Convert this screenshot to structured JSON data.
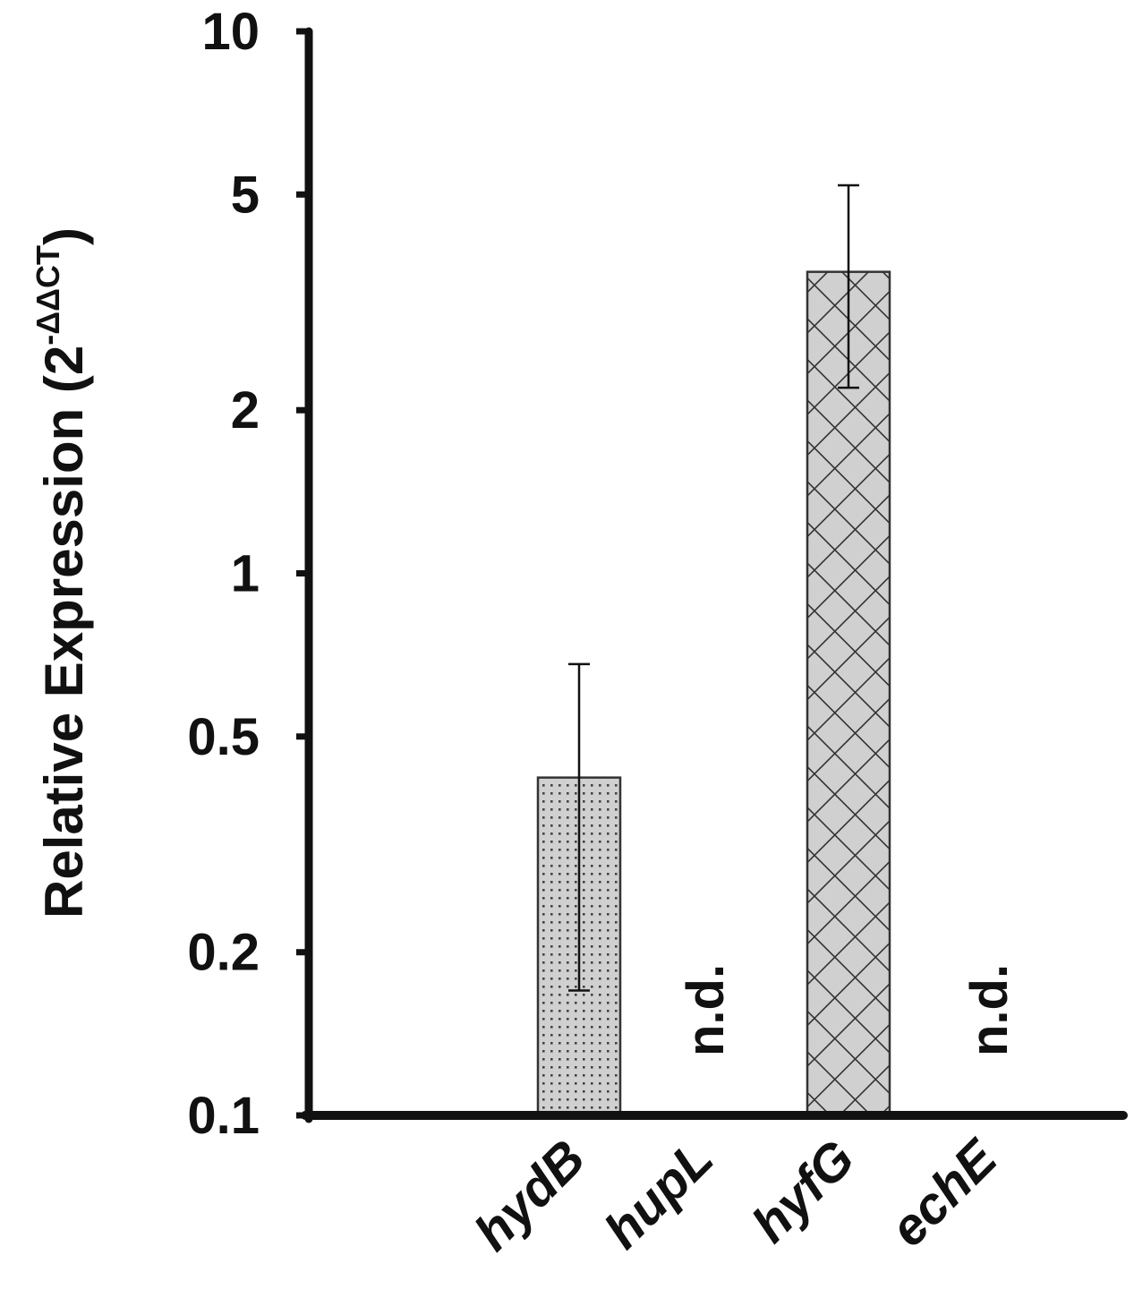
{
  "chart_data": {
    "type": "bar",
    "title": "",
    "xlabel": "",
    "ylabel": {
      "main": "Relative Expression (2",
      "superscript": "-ΔΔCT",
      "close": ")"
    },
    "yscale": "log",
    "ylim": [
      0.1,
      10
    ],
    "yticks": [
      0.1,
      0.2,
      0.5,
      1,
      2,
      5,
      10
    ],
    "ytick_labels": [
      "0.1",
      "0.2",
      "0.5",
      "1",
      "2",
      "5",
      "10"
    ],
    "categories": [
      "hydB",
      "hupL",
      "hyfG",
      "echE"
    ],
    "values": [
      0.42,
      null,
      3.6,
      null
    ],
    "error_low": [
      0.17,
      null,
      2.2,
      null
    ],
    "error_high": [
      0.68,
      null,
      5.2,
      null
    ],
    "annotations": [
      null,
      "n.d.",
      null,
      "n.d."
    ],
    "patterns": [
      "dots",
      null,
      "crosshatch",
      null
    ],
    "bar_fill": "#d0d0d0",
    "bar_stroke": "#333333",
    "axis_color": "#111111",
    "grid": false
  }
}
